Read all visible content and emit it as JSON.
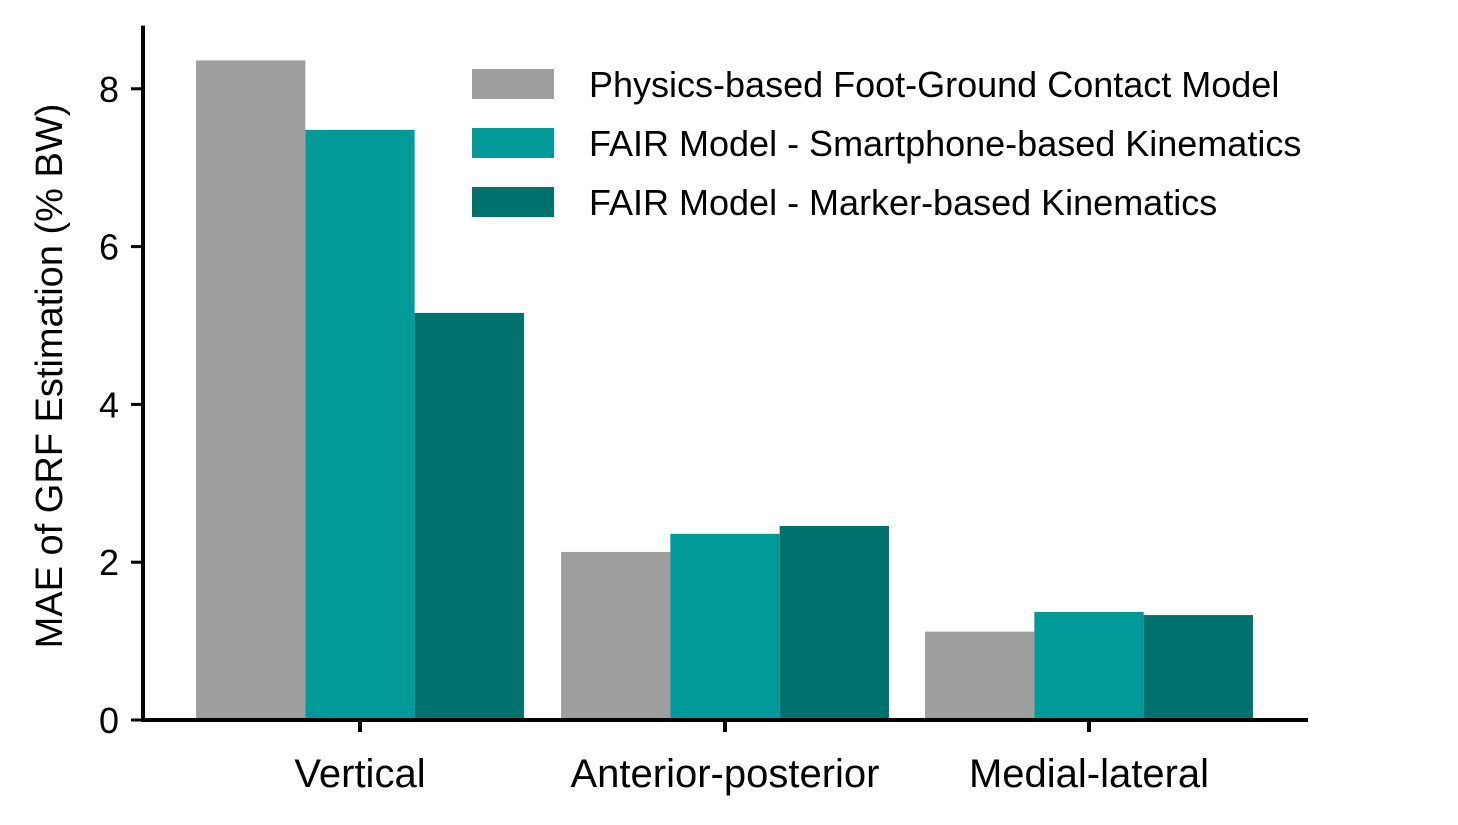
{
  "chart_data": {
    "type": "bar",
    "ylabel": "MAE of GRF Estimation (% BW)",
    "xlabel": "",
    "categories": [
      "Vertical",
      "Anterior-posterior",
      "Medial-lateral"
    ],
    "series": [
      {
        "name": "Physics-based Foot-Ground Contact Model",
        "values": [
          8.36,
          2.13,
          1.12
        ],
        "color": "#9e9e9e"
      },
      {
        "name": "FAIR Model - Smartphone-based Kinematics",
        "values": [
          7.48,
          2.36,
          1.37
        ],
        "color": "#009b99"
      },
      {
        "name": "FAIR Model - Marker-based Kinematics",
        "values": [
          5.16,
          2.46,
          1.33
        ],
        "color": "#00726e"
      }
    ],
    "ylim": [
      0,
      8.8
    ],
    "yticks": [
      0,
      2,
      4,
      6,
      8
    ],
    "legend_position": "top-right",
    "grid": false
  }
}
